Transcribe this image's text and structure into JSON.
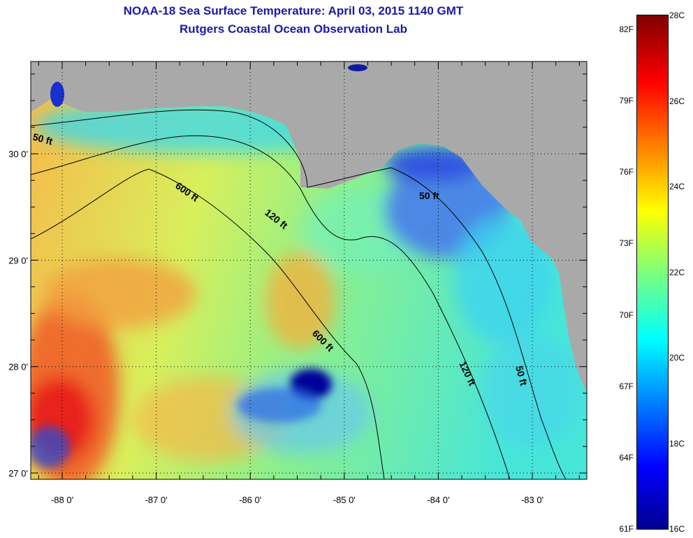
{
  "header": {
    "title": "NOAA-18 Sea Surface Temperature:  April 03, 2015 1140 GMT",
    "subtitle": "Rutgers Coastal Ocean Observation Lab"
  },
  "map": {
    "lat_ticks": [
      {
        "lat": 30,
        "label": "30 0'"
      },
      {
        "lat": 29,
        "label": "29 0'"
      },
      {
        "lat": 28,
        "label": "28 0'"
      },
      {
        "lat": 27,
        "label": "27 0'"
      }
    ],
    "lon_ticks": [
      {
        "lon": -88,
        "label": "-88 0'"
      },
      {
        "lon": -87,
        "label": "-87 0'"
      },
      {
        "lon": -86,
        "label": "-86 0'"
      },
      {
        "lon": -85,
        "label": "-85 0'"
      },
      {
        "lon": -84,
        "label": "-84 0'"
      },
      {
        "lon": -83,
        "label": "-83 0'"
      }
    ],
    "contour_labels": [
      "50 ft",
      "600 ft",
      "120 ft",
      "50 ft",
      "600 ft",
      "120 ft",
      "50 ft"
    ],
    "colors": {
      "land": "#a9a9a9",
      "frame": "#000000"
    }
  },
  "colorbar": {
    "celsius_labels": [
      "28C",
      "26C",
      "24C",
      "22C",
      "20C",
      "18C",
      "16C"
    ],
    "fahrenheit_labels": [
      "82F",
      "79F",
      "76F",
      "73F",
      "70F",
      "67F",
      "64F",
      "61F"
    ],
    "range_c": [
      16,
      28
    ],
    "colormap": "jet"
  }
}
